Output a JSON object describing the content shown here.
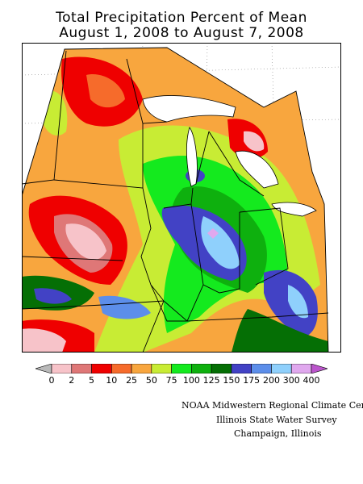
{
  "title_line1": "Total Precipitation Percent of Mean",
  "title_line2": "August 1, 2008 to August 7, 2008",
  "legend": {
    "labels": [
      "0",
      "2",
      "5",
      "10",
      "25",
      "50",
      "75",
      "100",
      "125",
      "150",
      "175",
      "200",
      "300",
      "400"
    ],
    "colors": [
      "#b9b9b9",
      "#f7c3c9",
      "#df7777",
      "#ef0000",
      "#f66b2b",
      "#f8a63e",
      "#c8ec34",
      "#14ea1e",
      "#0eb00e",
      "#056f05",
      "#4242c5",
      "#5c8eea",
      "#8fd0fc",
      "#e0a8ee",
      "#bb55cc"
    ]
  },
  "credit": {
    "line1": "NOAA Midwestern Regional Climate Cent",
    "line2": "Illinois State Water Survey",
    "line3": "Champaign, Illinois"
  }
}
